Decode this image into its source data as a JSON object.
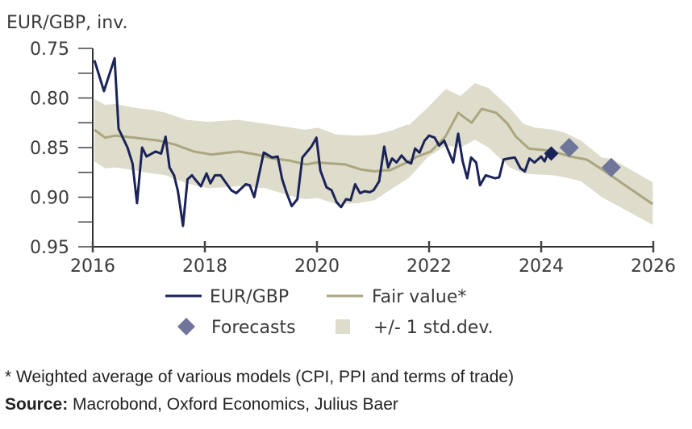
{
  "chart_data": {
    "type": "line",
    "title": "",
    "ylabel": "EUR/GBP, inv.",
    "xlabel": "",
    "y_inverted": true,
    "ylim": [
      0.75,
      0.95
    ],
    "xlim": [
      2016,
      2026
    ],
    "yticks": [
      "0.75",
      "0.80",
      "0.85",
      "0.90",
      "0.95"
    ],
    "ytick_values": [
      0.75,
      0.8,
      0.85,
      0.9,
      0.95
    ],
    "yminor_ticks": [
      0.775,
      0.825,
      0.875,
      0.925
    ],
    "xticks": [
      "2016",
      "2018",
      "2020",
      "2022",
      "2024",
      "2026"
    ],
    "xtick_values": [
      2016,
      2018,
      2020,
      2022,
      2024,
      2026
    ],
    "grid": false,
    "legend_placement": "bottom",
    "legend": [
      {
        "label": "EUR/GBP",
        "symbol": "line",
        "color": "#1b2359"
      },
      {
        "label": "Fair value*",
        "symbol": "line",
        "color": "#aaa67f"
      },
      {
        "label": "Forecasts",
        "symbol": "diamond",
        "color": "#6f7699"
      },
      {
        "label": "+/- 1 std.dev.",
        "symbol": "square",
        "color": "#dedccb"
      }
    ],
    "series": [
      {
        "name": "EUR/GBP",
        "color": "#1b2359",
        "x": [
          2016.03,
          2016.2,
          2016.39,
          2016.46,
          2016.62,
          2016.71,
          2016.79,
          2016.88,
          2016.96,
          2017.12,
          2017.22,
          2017.3,
          2017.37,
          2017.45,
          2017.52,
          2017.61,
          2017.69,
          2017.77,
          2017.84,
          2017.93,
          2018.03,
          2018.1,
          2018.18,
          2018.28,
          2018.47,
          2018.56,
          2018.73,
          2018.8,
          2018.88,
          2019.05,
          2019.2,
          2019.3,
          2019.38,
          2019.46,
          2019.55,
          2019.65,
          2019.74,
          2019.9,
          2019.99,
          2020.06,
          2020.17,
          2020.26,
          2020.35,
          2020.43,
          2020.52,
          2020.6,
          2020.68,
          2020.77,
          2020.85,
          2020.94,
          2021.01,
          2021.11,
          2021.2,
          2021.27,
          2021.34,
          2021.42,
          2021.51,
          2021.6,
          2021.68,
          2021.75,
          2021.83,
          2021.92,
          2022.0,
          2022.1,
          2022.18,
          2022.27,
          2022.35,
          2022.43,
          2022.52,
          2022.6,
          2022.68,
          2022.75,
          2022.84,
          2022.91,
          2023.01,
          2023.18,
          2023.25,
          2023.33,
          2023.42,
          2023.53,
          2023.63,
          2023.71,
          2023.79,
          2023.88,
          2024.0,
          2024.06,
          2024.12,
          2024.18
        ],
        "values": [
          0.762,
          0.793,
          0.76,
          0.831,
          0.85,
          0.866,
          0.906,
          0.85,
          0.859,
          0.854,
          0.856,
          0.839,
          0.87,
          0.878,
          0.894,
          0.929,
          0.882,
          0.878,
          0.883,
          0.889,
          0.876,
          0.886,
          0.878,
          0.878,
          0.893,
          0.896,
          0.887,
          0.888,
          0.9,
          0.855,
          0.86,
          0.859,
          0.882,
          0.896,
          0.909,
          0.902,
          0.86,
          0.849,
          0.84,
          0.873,
          0.89,
          0.893,
          0.905,
          0.91,
          0.902,
          0.903,
          0.887,
          0.896,
          0.894,
          0.895,
          0.893,
          0.884,
          0.849,
          0.87,
          0.861,
          0.865,
          0.858,
          0.864,
          0.866,
          0.851,
          0.855,
          0.843,
          0.838,
          0.84,
          0.848,
          0.843,
          0.854,
          0.865,
          0.836,
          0.864,
          0.881,
          0.86,
          0.865,
          0.888,
          0.878,
          0.881,
          0.88,
          0.862,
          0.861,
          0.86,
          0.871,
          0.874,
          0.861,
          0.865,
          0.859,
          0.864,
          0.856,
          0.856
        ]
      },
      {
        "name": "Fair value*",
        "color": "#aaa67f",
        "x": [
          2016.03,
          2016.22,
          2016.4,
          2016.75,
          2017.18,
          2017.47,
          2017.8,
          2018.12,
          2018.6,
          2018.92,
          2019.21,
          2019.5,
          2019.81,
          2020.0,
          2020.26,
          2020.5,
          2020.78,
          2021.03,
          2021.2,
          2021.3,
          2021.6,
          2021.79,
          2022.03,
          2022.29,
          2022.52,
          2022.76,
          2022.94,
          2023.2,
          2023.4,
          2023.55,
          2023.78,
          2024.14,
          2024.28,
          2024.52,
          2024.81,
          2025.14,
          2025.47,
          2025.99
        ],
        "values": [
          0.832,
          0.84,
          0.838,
          0.84,
          0.843,
          0.847,
          0.854,
          0.857,
          0.854,
          0.857,
          0.861,
          0.863,
          0.867,
          0.865,
          0.866,
          0.867,
          0.872,
          0.874,
          0.873,
          0.873,
          0.865,
          0.859,
          0.854,
          0.839,
          0.815,
          0.825,
          0.811,
          0.815,
          0.826,
          0.839,
          0.851,
          0.853,
          0.855,
          0.859,
          0.862,
          0.874,
          0.887,
          0.907
        ]
      }
    ],
    "band": {
      "name": "+/- 1 std.dev.",
      "color": "#dedccb",
      "x": [
        2016.03,
        2016.22,
        2016.4,
        2016.75,
        2017.06,
        2017.3,
        2017.67,
        2018.06,
        2018.6,
        2019.08,
        2019.55,
        2019.78,
        2020.02,
        2020.35,
        2020.74,
        2021.03,
        2021.32,
        2021.6,
        2021.65,
        2021.97,
        2022.3,
        2022.56,
        2022.82,
        2023.06,
        2023.44,
        2023.68,
        2023.9,
        2024.22,
        2024.42,
        2024.71,
        2025.08,
        2025.28,
        2025.99
      ],
      "upper": [
        0.801,
        0.807,
        0.806,
        0.81,
        0.812,
        0.815,
        0.822,
        0.824,
        0.822,
        0.826,
        0.83,
        0.832,
        0.83,
        0.837,
        0.838,
        0.837,
        0.833,
        0.827,
        0.827,
        0.81,
        0.791,
        0.798,
        0.785,
        0.79,
        0.81,
        0.826,
        0.83,
        0.832,
        0.835,
        0.843,
        0.86,
        0.862,
        0.885
      ],
      "lower": [
        0.864,
        0.871,
        0.87,
        0.873,
        0.876,
        0.878,
        0.886,
        0.891,
        0.889,
        0.891,
        0.899,
        0.902,
        0.901,
        0.907,
        0.906,
        0.903,
        0.892,
        0.882,
        0.88,
        0.86,
        0.848,
        0.85,
        0.842,
        0.85,
        0.87,
        0.876,
        0.877,
        0.878,
        0.88,
        0.884,
        0.9,
        0.906,
        0.928
      ]
    },
    "forecasts": {
      "name": "Forecasts",
      "color": "#6f7699",
      "x": [
        2024.5,
        2025.25
      ],
      "values": [
        0.85,
        0.87
      ]
    },
    "latest_point": {
      "x": 2024.18,
      "value": 0.856,
      "color": "#1b2359"
    }
  },
  "footnotes": {
    "note": "* Weighted average of various models (CPI, PPI and terms of trade)",
    "source_label": "Source:",
    "source_text": " Macrobond, Oxford Economics, Julius Baer"
  }
}
